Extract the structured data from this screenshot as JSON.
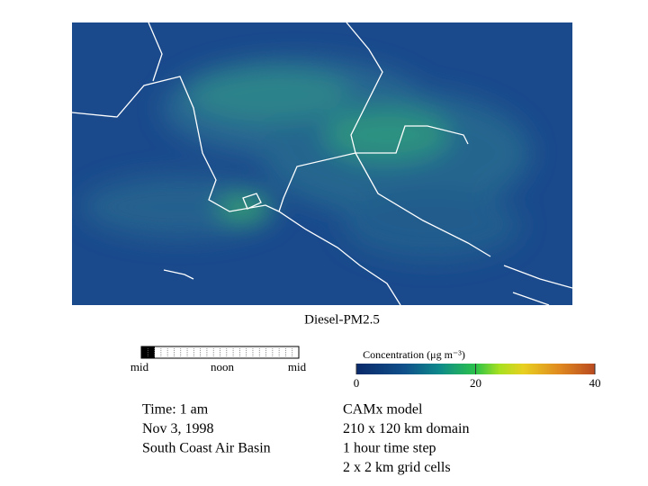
{
  "title": "Diesel-PM2.5",
  "timeline": {
    "labels": [
      "mid",
      "noon",
      "mid"
    ]
  },
  "colorbar": {
    "title": "Concentration (μg m⁻³)",
    "lim": [
      0,
      40
    ],
    "ticks": [
      0,
      20,
      40
    ]
  },
  "info_left": [
    "Time: 1 am",
    "Nov 3, 1998",
    "South Coast Air Basin"
  ],
  "info_right": [
    "CAMx model",
    "210 x 120 km domain",
    "1 hour time step",
    "2 x 2 km grid cells"
  ]
}
